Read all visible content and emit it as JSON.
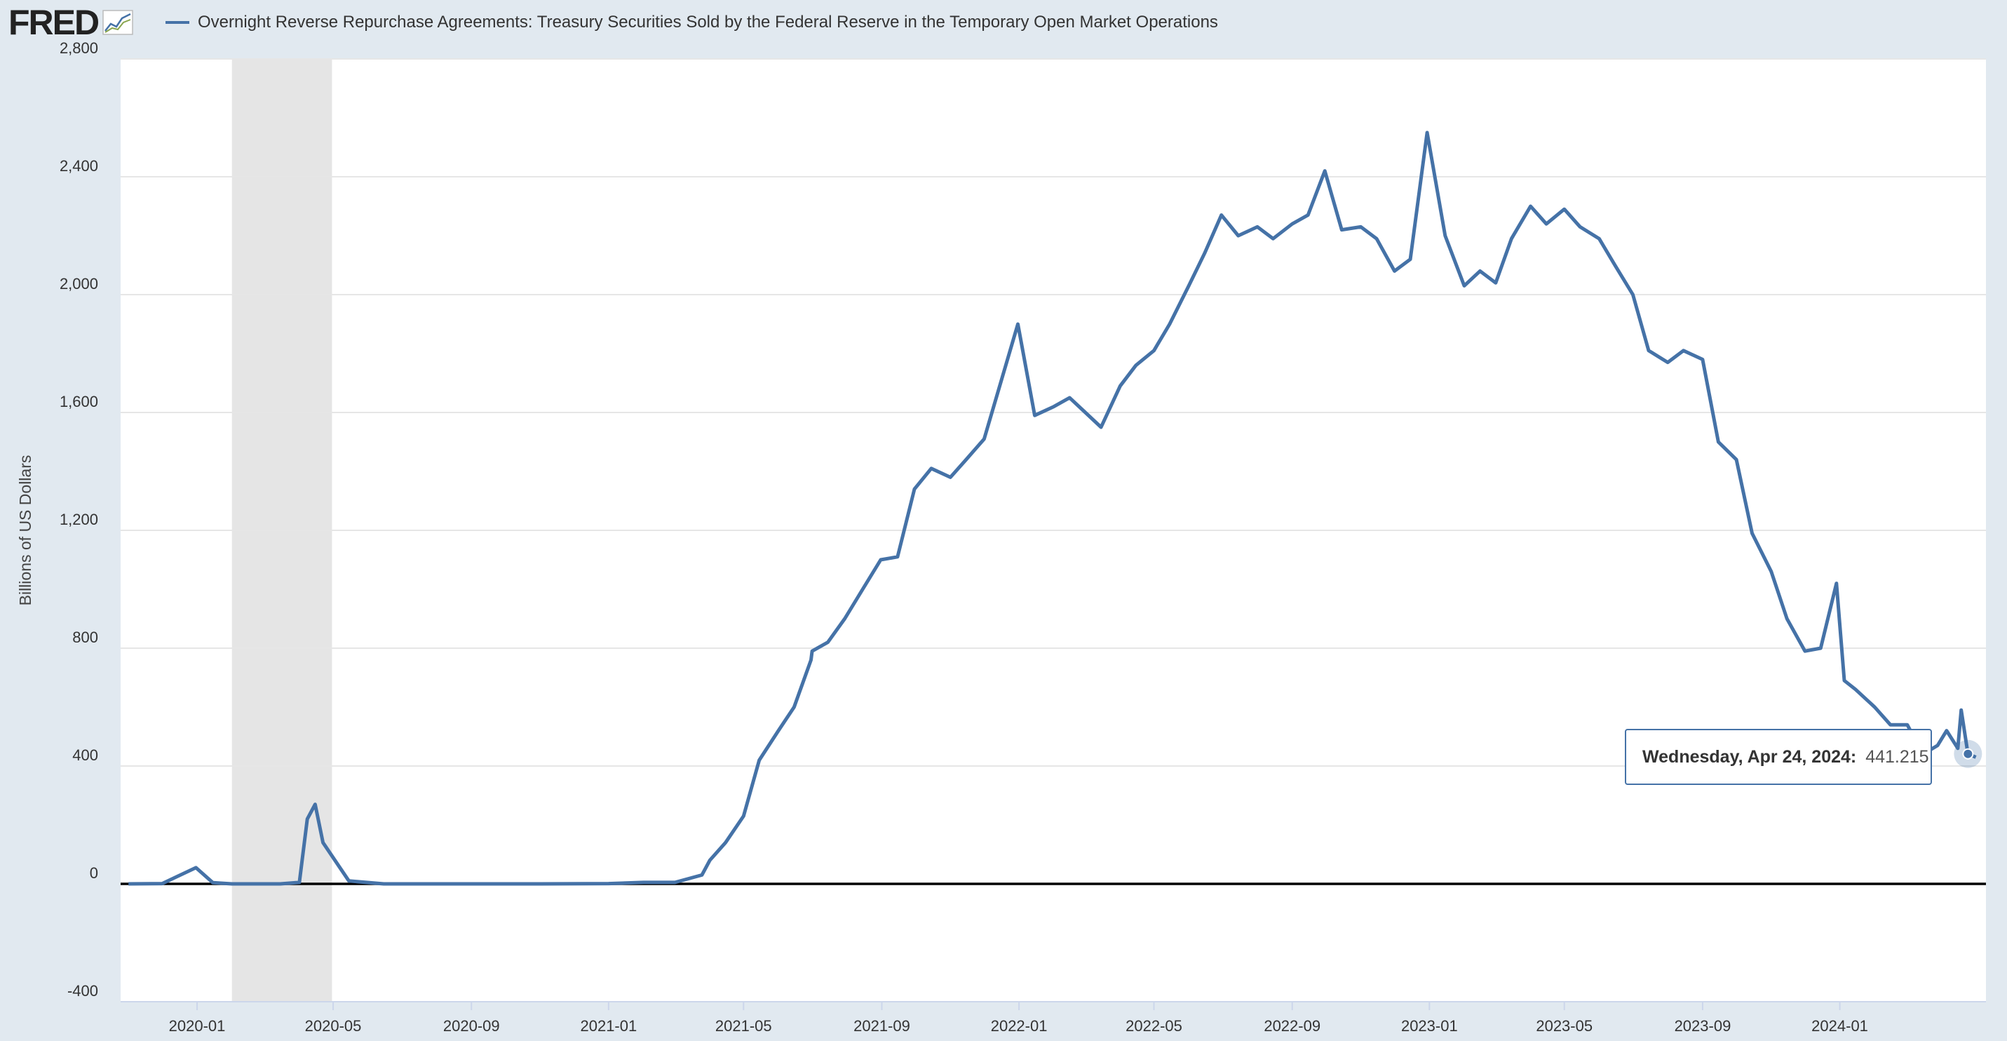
{
  "app": {
    "logo_text": "FRED"
  },
  "chart_data": {
    "type": "line",
    "title": "Overnight Reverse Repurchase Agreements: Treasury Securities Sold by the Federal Reserve in the Temporary Open Market Operations",
    "xlabel": "",
    "ylabel": "Billions of US Dollars",
    "ylim": [
      -400,
      2800
    ],
    "y_ticks": [
      "2,800",
      "2,400",
      "2,000",
      "1,600",
      "1,200",
      "800",
      "400",
      "0",
      "-400"
    ],
    "x_ticks": [
      "2020-01",
      "2020-05",
      "2020-09",
      "2021-01",
      "2021-05",
      "2021-09",
      "2022-01",
      "2022-05",
      "2022-09",
      "2023-01",
      "2023-05",
      "2023-09",
      "2024-01"
    ],
    "x_range": [
      "2019-10-25",
      "2024-05-10"
    ],
    "recession_band": [
      "2020-02-01",
      "2020-04-30"
    ],
    "series": [
      {
        "name": "Overnight Reverse Repurchase Agreements",
        "color": "#4572a7",
        "x": [
          "2019-11-01",
          "2019-12-01",
          "2019-12-31",
          "2020-01-15",
          "2020-02-01",
          "2020-03-15",
          "2020-04-01",
          "2020-04-08",
          "2020-04-15",
          "2020-04-22",
          "2020-05-15",
          "2020-06-15",
          "2020-08-01",
          "2020-11-01",
          "2021-01-01",
          "2021-02-01",
          "2021-03-01",
          "2021-03-25",
          "2021-04-01",
          "2021-04-15",
          "2021-05-01",
          "2021-05-15",
          "2021-06-01",
          "2021-06-15",
          "2021-06-30",
          "2021-07-01",
          "2021-07-15",
          "2021-07-30",
          "2021-08-15",
          "2021-08-31",
          "2021-09-15",
          "2021-09-30",
          "2021-10-15",
          "2021-11-01",
          "2021-11-15",
          "2021-12-01",
          "2021-12-31",
          "2022-01-15",
          "2022-02-01",
          "2022-02-15",
          "2022-03-01",
          "2022-03-15",
          "2022-04-01",
          "2022-04-15",
          "2022-05-01",
          "2022-05-15",
          "2022-06-01",
          "2022-06-15",
          "2022-06-30",
          "2022-07-15",
          "2022-08-01",
          "2022-08-15",
          "2022-09-01",
          "2022-09-15",
          "2022-09-30",
          "2022-10-15",
          "2022-11-01",
          "2022-11-15",
          "2022-12-01",
          "2022-12-15",
          "2022-12-30",
          "2023-01-15",
          "2023-02-01",
          "2023-02-15",
          "2023-03-01",
          "2023-03-15",
          "2023-04-01",
          "2023-04-15",
          "2023-05-01",
          "2023-05-15",
          "2023-06-01",
          "2023-06-15",
          "2023-07-01",
          "2023-07-15",
          "2023-08-01",
          "2023-08-15",
          "2023-09-01",
          "2023-09-15",
          "2023-10-01",
          "2023-10-15",
          "2023-11-01",
          "2023-11-15",
          "2023-12-01",
          "2023-12-15",
          "2023-12-29",
          "2024-01-05",
          "2024-01-15",
          "2024-02-01",
          "2024-02-15",
          "2024-03-01",
          "2024-03-15",
          "2024-03-28",
          "2024-04-05",
          "2024-04-15",
          "2024-04-18",
          "2024-04-24",
          "2024-05-01"
        ],
        "values": [
          0,
          1,
          55,
          4,
          0,
          0,
          5,
          220,
          270,
          140,
          10,
          0,
          0,
          0,
          1,
          5,
          5,
          30,
          80,
          140,
          230,
          420,
          520,
          600,
          760,
          790,
          820,
          900,
          1000,
          1100,
          1110,
          1340,
          1410,
          1380,
          1440,
          1510,
          1900,
          1590,
          1620,
          1650,
          1600,
          1550,
          1690,
          1760,
          1810,
          1900,
          2030,
          2140,
          2270,
          2200,
          2230,
          2190,
          2240,
          2270,
          2420,
          2220,
          2230,
          2190,
          2080,
          2120,
          2550,
          2200,
          2030,
          2080,
          2040,
          2190,
          2300,
          2240,
          2290,
          2230,
          2190,
          2100,
          2000,
          1810,
          1770,
          1810,
          1780,
          1500,
          1440,
          1190,
          1060,
          900,
          790,
          800,
          1020,
          690,
          660,
          600,
          540,
          540,
          440,
          470,
          520,
          460,
          590,
          441.215,
          430
        ]
      }
    ],
    "tooltip": {
      "date": "Wednesday, Apr 24, 2024:",
      "value": "441.215"
    },
    "grid": "horizontal",
    "legend": "top-left"
  }
}
